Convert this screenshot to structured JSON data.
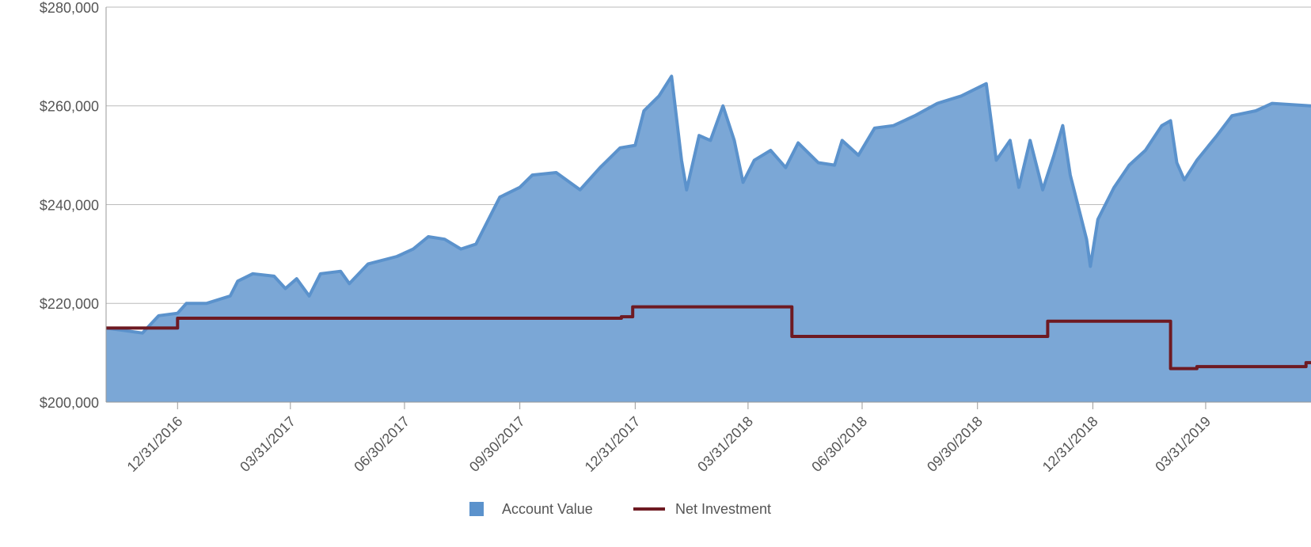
{
  "chart_data": {
    "type": "area_line",
    "xlim": [
      "11/04/2016",
      "06/23/2019"
    ],
    "xticks": [
      "12/31/2016",
      "03/31/2017",
      "06/30/2017",
      "09/30/2017",
      "12/31/2017",
      "03/31/2018",
      "06/30/2018",
      "09/30/2018",
      "12/31/2018",
      "03/31/2019"
    ],
    "ylim": [
      200000,
      280000
    ],
    "yticks": [
      {
        "value": 200000,
        "label": "$200,000"
      },
      {
        "value": 220000,
        "label": "$220,000"
      },
      {
        "value": 240000,
        "label": "$240,000"
      },
      {
        "value": 260000,
        "label": "$260,000"
      },
      {
        "value": 280000,
        "label": "$280,000"
      }
    ],
    "grid": true,
    "legend": "bottom",
    "series": [
      {
        "name": "Account Value",
        "color": "#5b92cc",
        "fill": "#7ba7d6",
        "x": [
          "11/04/2016",
          "12/03/2016",
          "12/16/2016",
          "12/31/2016",
          "01/07/2017",
          "01/23/2017",
          "02/11/2017",
          "02/17/2017",
          "03/01/2017",
          "03/18/2017",
          "03/27/2017",
          "04/05/2017",
          "04/15/2017",
          "04/24/2017",
          "05/10/2017",
          "05/17/2017",
          "06/01/2017",
          "06/24/2017",
          "07/07/2017",
          "07/19/2017",
          "08/01/2017",
          "08/14/2017",
          "08/26/2017",
          "09/03/2017",
          "09/14/2017",
          "09/30/2017",
          "10/10/2017",
          "10/29/2017",
          "11/17/2017",
          "12/03/2017",
          "12/19/2017",
          "12/31/2017",
          "01/07/2018",
          "01/19/2018",
          "01/29/2018",
          "02/06/2018",
          "02/10/2018",
          "02/20/2018",
          "03/01/2018",
          "03/11/2018",
          "03/20/2018",
          "03/27/2018",
          "04/05/2018",
          "04/18/2018",
          "04/30/2018",
          "05/10/2018",
          "05/26/2018",
          "06/08/2018",
          "06/14/2018",
          "06/27/2018",
          "07/10/2018",
          "07/25/2018",
          "08/11/2018",
          "08/29/2018",
          "09/17/2018",
          "10/07/2018",
          "10/15/2018",
          "10/26/2018",
          "11/02/2018",
          "11/11/2018",
          "11/21/2018",
          "11/30/2018",
          "12/07/2018",
          "12/13/2018",
          "12/26/2018",
          "12/29/2018",
          "01/04/2019",
          "01/17/2019",
          "01/29/2019",
          "02/11/2019",
          "02/24/2019",
          "03/03/2019",
          "03/08/2019",
          "03/14/2019",
          "03/24/2019",
          "04/09/2019",
          "04/21/2019",
          "05/10/2019",
          "05/23/2019",
          "06/23/2019"
        ],
        "values": [
          215000,
          214000,
          217500,
          218000,
          220000,
          220000,
          221500,
          224500,
          226000,
          225500,
          223000,
          225000,
          221500,
          226000,
          226500,
          224000,
          228000,
          229500,
          231000,
          233500,
          233000,
          231000,
          232000,
          236000,
          241500,
          243500,
          246000,
          246500,
          243000,
          247500,
          251500,
          252000,
          259000,
          262000,
          266000,
          249000,
          243000,
          254000,
          253000,
          260000,
          253000,
          244500,
          249000,
          251000,
          247500,
          252500,
          248500,
          248000,
          253000,
          250000,
          255500,
          256000,
          258000,
          260500,
          262000,
          264500,
          249000,
          253000,
          243500,
          253000,
          243000,
          250000,
          256000,
          246000,
          233000,
          227500,
          237000,
          243500,
          248000,
          251000,
          256000,
          257000,
          248500,
          245000,
          249000,
          254000,
          258000,
          259000,
          260500,
          260000
        ]
      },
      {
        "name": "Net Investment",
        "color": "#6e1a22",
        "x": [
          "11/04/2016",
          "12/31/2016",
          "12/31/2016",
          "12/20/2017",
          "12/20/2017",
          "12/29/2017",
          "12/29/2017",
          "05/05/2018",
          "05/05/2018",
          "11/25/2018",
          "11/25/2018",
          "03/03/2019",
          "03/03/2019",
          "03/24/2019",
          "03/24/2019",
          "06/19/2019",
          "06/19/2019",
          "06/23/2019"
        ],
        "values": [
          215000,
          215000,
          217000,
          217000,
          217300,
          217300,
          219300,
          219300,
          213300,
          213300,
          216400,
          216400,
          206800,
          206800,
          207200,
          207200,
          208000,
          208000
        ]
      }
    ]
  }
}
